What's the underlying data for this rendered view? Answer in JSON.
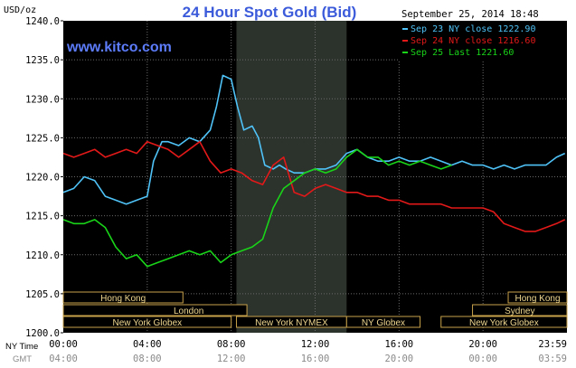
{
  "title": "24 Hour Spot Gold (Bid)",
  "currency_label": "USD/oz",
  "brand": "www.kitco.com",
  "timestamp": "September 25, 2014 18:48",
  "legend": [
    {
      "text": "Sep 23 NY close 1222.90",
      "color": "#4fc3f7"
    },
    {
      "text": "Sep 24 NY close 1216.60",
      "color": "#e31919"
    },
    {
      "text": "Sep 25 Last 1221.60",
      "color": "#19d419"
    }
  ],
  "time_axis": {
    "ny_label": "NY Time",
    "gmt_label": "GMT",
    "ny_ticks": [
      "00:00",
      "04:00",
      "08:00",
      "12:00",
      "16:00",
      "20:00",
      "23:59"
    ],
    "gmt_ticks": [
      "04:00",
      "08:00",
      "12:00",
      "16:00",
      "20:00",
      "00:00",
      "03:59"
    ]
  },
  "sessions": [
    {
      "label": "Hong Kong",
      "start": 0,
      "end": 5.7,
      "row": 0
    },
    {
      "label": "London",
      "start": 0,
      "end": 8.75,
      "row": 1,
      "marker_start": 3.2
    },
    {
      "label": "New York Globex",
      "start": 0,
      "end": 8.0,
      "row": 2
    },
    {
      "label": "New York NYMEX",
      "start": 8.25,
      "end": 13.5,
      "row": 2
    },
    {
      "label": "NY Globex",
      "start": 13.5,
      "end": 17.0,
      "row": 2
    },
    {
      "label": "Hong Kong",
      "start": 21.2,
      "end": 24,
      "row": 0
    },
    {
      "label": "Sydney",
      "start": 19.5,
      "end": 24,
      "row": 1
    },
    {
      "label": "New York Globex",
      "start": 18.0,
      "end": 24,
      "row": 2
    }
  ],
  "chart_data": {
    "type": "line",
    "title": "24 Hour Spot Gold (Bid)",
    "ylabel": "USD/oz",
    "xlim": [
      0,
      24
    ],
    "ylim": [
      1200,
      1240
    ],
    "yticks": [
      1200,
      1205,
      1210,
      1215,
      1220,
      1225,
      1230,
      1235,
      1240
    ],
    "ytick_labels": [
      "1200.0",
      "1205.0",
      "1210.0",
      "1215.0",
      "1220.0",
      "1225.0",
      "1230.0",
      "1235.0",
      "1240.0"
    ],
    "shaded_range": [
      8.25,
      13.5
    ],
    "grid": true,
    "series": [
      {
        "name": "Sep 23 NY close 1222.90",
        "color": "#4fc3f7",
        "x": [
          0,
          0.5,
          1,
          1.5,
          2,
          2.5,
          3,
          3.5,
          4,
          4.3,
          4.7,
          5,
          5.5,
          6,
          6.5,
          7,
          7.3,
          7.6,
          8,
          8.3,
          8.6,
          9,
          9.3,
          9.6,
          10,
          10.3,
          10.6,
          11,
          11.5,
          12,
          12.5,
          13,
          13.5,
          14,
          14.5,
          15,
          15.5,
          16,
          16.5,
          17,
          17.5,
          18,
          18.5,
          19,
          19.5,
          20,
          20.5,
          21,
          21.5,
          22,
          22.5,
          23,
          23.5,
          23.9
        ],
        "y": [
          1218,
          1218.5,
          1220,
          1219.5,
          1217.5,
          1217,
          1216.5,
          1217,
          1217.5,
          1222,
          1224.5,
          1224.5,
          1224,
          1225,
          1224.5,
          1226,
          1229,
          1233,
          1232.5,
          1229,
          1226,
          1226.5,
          1225,
          1221.5,
          1221,
          1221.5,
          1221,
          1220.5,
          1220.5,
          1221,
          1221,
          1221.5,
          1223,
          1223.5,
          1222.5,
          1222,
          1222,
          1222.5,
          1222,
          1222,
          1222.5,
          1222,
          1221.5,
          1222,
          1221.5,
          1221.5,
          1221,
          1221.5,
          1221,
          1221.5,
          1221.5,
          1221.5,
          1222.5,
          1223
        ]
      },
      {
        "name": "Sep 24 NY close 1216.60",
        "color": "#e31919",
        "x": [
          0,
          0.5,
          1,
          1.5,
          2,
          2.5,
          3,
          3.5,
          4,
          4.5,
          5,
          5.5,
          6,
          6.5,
          7,
          7.5,
          8,
          8.5,
          9,
          9.5,
          10,
          10.5,
          11,
          11.5,
          12,
          12.5,
          13,
          13.5,
          14,
          14.5,
          15,
          15.5,
          16,
          16.5,
          17,
          17.5,
          18,
          18.5,
          19,
          19.5,
          20,
          20.5,
          21,
          21.5,
          22,
          22.5,
          23,
          23.5,
          23.9
        ],
        "y": [
          1223,
          1222.5,
          1223,
          1223.5,
          1222.5,
          1223,
          1223.5,
          1223,
          1224.5,
          1224,
          1223.5,
          1222.5,
          1223.5,
          1224.5,
          1222,
          1220.5,
          1221,
          1220.5,
          1219.5,
          1219,
          1221.5,
          1222.5,
          1218,
          1217.5,
          1218.5,
          1219,
          1218.5,
          1218,
          1218,
          1217.5,
          1217.5,
          1217,
          1217,
          1216.5,
          1216.5,
          1216.5,
          1216.5,
          1216,
          1216,
          1216,
          1216,
          1215.5,
          1214,
          1213.5,
          1213,
          1213,
          1213.5,
          1214,
          1214.5
        ]
      },
      {
        "name": "Sep 25 Last 1221.60",
        "color": "#19d419",
        "x": [
          0,
          0.5,
          1,
          1.5,
          2,
          2.5,
          3,
          3.5,
          4,
          4.5,
          5,
          5.5,
          6,
          6.5,
          7,
          7.5,
          8,
          8.5,
          9,
          9.5,
          10,
          10.5,
          11,
          11.5,
          12,
          12.5,
          13,
          13.5,
          14,
          14.5,
          15,
          15.5,
          16,
          16.5,
          17,
          17.5,
          18,
          18.5
        ],
        "y": [
          1214.5,
          1214,
          1214,
          1214.5,
          1213.5,
          1211,
          1209.5,
          1210,
          1208.5,
          1209,
          1209.5,
          1210,
          1210.5,
          1210,
          1210.5,
          1209,
          1210,
          1210.5,
          1211,
          1212,
          1216,
          1218.5,
          1219.5,
          1220.5,
          1221,
          1220.5,
          1221,
          1222.5,
          1223.5,
          1222.5,
          1222.5,
          1221.5,
          1222,
          1221.5,
          1222,
          1221.5,
          1221,
          1221.5
        ]
      }
    ]
  }
}
